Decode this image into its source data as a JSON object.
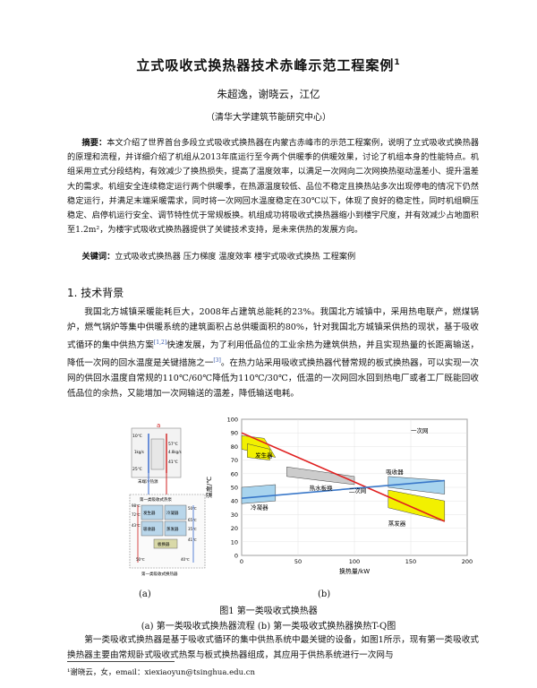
{
  "header": {
    "title": "立式吸收式换热器技术赤峰示范工程案例",
    "title_sup": "1",
    "authors": "朱超逸，谢晓云，江亿",
    "affiliation": "（清华大学建筑节能研究中心）"
  },
  "abstract": {
    "label": "摘要：",
    "text": "本文介绍了世界首台多段立式吸收式换热器在内蒙古赤峰市的示范工程案例，说明了立式吸收式换热器的原理和流程，并详细介绍了机组从2013年底运行至今两个供暖季的供暖效果，讨论了机组本身的性能特点。机组采用立式分段结构，有效减少了换热损失，提高了温度效率，以满足一次网向二次网换热驱动温差小、提升温差大的需求。机组安全连续稳定运行两个供暖季，在热源温度较低、品位不稳定且换热站多次出现停电的情况下仍然稳定运行，并满足末端采暖需求，同时将一次网回水温度稳定在30℃以下，体现了良好的稳定性，同时机组瞬压稳定、启停机运行安全、调节特性优于常规板换。机组成功将吸收式换热器缩小到楼宇尺度，并有效减少占地面积至1.2m²，为楼宇式吸收式换热器提供了关键技术支持，是未来供热的发展方向。"
  },
  "keywords": {
    "label": "关键词：",
    "text": "立式吸收式换热器 压力梯度 温度效率 楼宇式吸收式换热 工程案例"
  },
  "section1": {
    "heading": "1. 技术背景",
    "para_a": "我国北方城镇采暖能耗巨大，2008年占建筑总能耗的23%。我国北方城镇中，采用热电联产，燃煤锅炉，燃气锅炉等集中供暖系统的建筑面积占总供暖面积的80%，针对我国北方城镇采供热的现状，基于吸收式循环的集中供热方案",
    "ref1": "[1,2]",
    "para_b": "快速发展，为了利用低品位的工业余热为建筑供热，并且实现热量的长距离输送，降低一次网的回水温度是关键措施之一",
    "ref2": "[3]",
    "para_c": "。在热力站采用吸收式换热器代替常规的板式换热器，可以实现一次网的供回水温度自常规的110℃/60℃降低为110℃/30℃，低温的一次网回水回到热电厂或者工厂既能回收低品位的余热，又能增加一次网输送的温差，降低输送电耗。"
  },
  "figure": {
    "a": {
      "title_a": "a",
      "t1": "10℃",
      "t2": "57℃",
      "t3": "4.8kg/s",
      "t4": "41℃",
      "t5": "25℃",
      "t6": "1kg/s",
      "caption_top": "末端冷热源",
      "box_label": "第一类吸收式热泵",
      "temps": [
        "98℃",
        "72℃",
        "50℃",
        "43℃",
        "65℃",
        "35℃",
        "41℃",
        "50℃",
        "40℃"
      ],
      "units": [
        "发生器",
        "冷凝器",
        "吸收器",
        "蒸发器"
      ],
      "hx_label": "板换器",
      "bottom_label": "第一类吸收式换热器"
    },
    "b": {
      "ylabel": "温度/℃",
      "xlabel": "换热量/kW",
      "labels": [
        "一次网",
        "发生器",
        "热水板换",
        "二次网",
        "吸收器",
        "冷凝器",
        "蒸发器"
      ]
    },
    "sublabel_a": "(a)",
    "sublabel_b": "(b)",
    "caption": "图1 第一类吸收式换热器",
    "subcaption": "(a) 第一类吸收式换热器流程 (b) 第一类吸收式换热器换热T-Q图"
  },
  "paragraph2": "第一类吸收式换热器是基于吸收式循环的集中供热系统中最关键的设备，如图1所示，现有第一类吸收式换热器主要由常规卧式吸收式热泵与板式换热器组成，其应用于供热系统进行一次网与",
  "footnote": "¹谢晓云，女，email：xiexiaoyun@tsinghua.edu.cn",
  "chart_data": {
    "type": "line",
    "title": "",
    "xlabel": "换热量/kW",
    "ylabel": "温度/℃",
    "xlim": [
      0,
      200
    ],
    "ylim": [
      0,
      100
    ],
    "x_ticks": [
      0,
      50,
      100,
      150,
      200
    ],
    "y_ticks": [
      0,
      10,
      20,
      30,
      40,
      50,
      60,
      70,
      80,
      90,
      100
    ],
    "grid": true,
    "series": [
      {
        "name": "一次网",
        "color": "#e02020",
        "x": [
          0,
          180
        ],
        "y": [
          90,
          25
        ]
      },
      {
        "name": "二次网",
        "color": "#3a78c9",
        "x": [
          0,
          180
        ],
        "y": [
          42,
          55
        ]
      }
    ]
  }
}
